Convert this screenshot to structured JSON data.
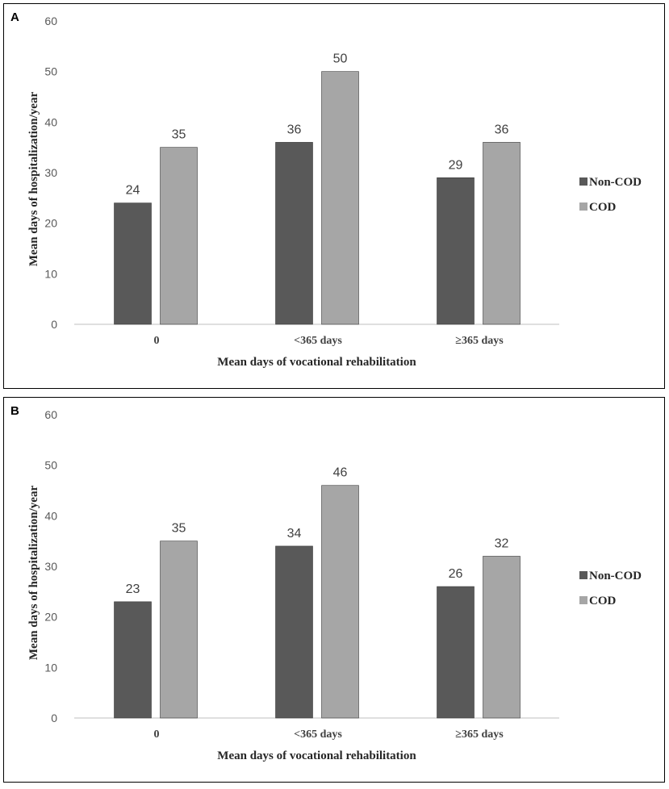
{
  "chart_data": [
    {
      "panel": "A",
      "type": "bar",
      "categories": [
        "0",
        "<365 days",
        "≥365 days"
      ],
      "series": [
        {
          "name": "Non-COD",
          "color": "#595959",
          "values": [
            24,
            36,
            29
          ]
        },
        {
          "name": "COD",
          "color": "#a6a6a6",
          "values": [
            35,
            50,
            36
          ]
        }
      ],
      "xlabel": "Mean days of vocational rehabilitation",
      "ylabel": "Mean days of hospitalization/year",
      "ylim": [
        0,
        60
      ],
      "yticks": [
        0,
        10,
        20,
        30,
        40,
        50,
        60
      ],
      "legend": "right"
    },
    {
      "panel": "B",
      "type": "bar",
      "categories": [
        "0",
        "<365 days",
        "≥365 days"
      ],
      "series": [
        {
          "name": "Non-COD",
          "color": "#595959",
          "values": [
            23,
            34,
            26
          ]
        },
        {
          "name": "COD",
          "color": "#a6a6a6",
          "values": [
            35,
            46,
            32
          ]
        }
      ],
      "xlabel": "Mean days of vocational rehabilitation",
      "ylabel": "Mean days of hospitalization/year",
      "ylim": [
        0,
        60
      ],
      "yticks": [
        0,
        10,
        20,
        30,
        40,
        50,
        60
      ],
      "legend": "right"
    }
  ]
}
